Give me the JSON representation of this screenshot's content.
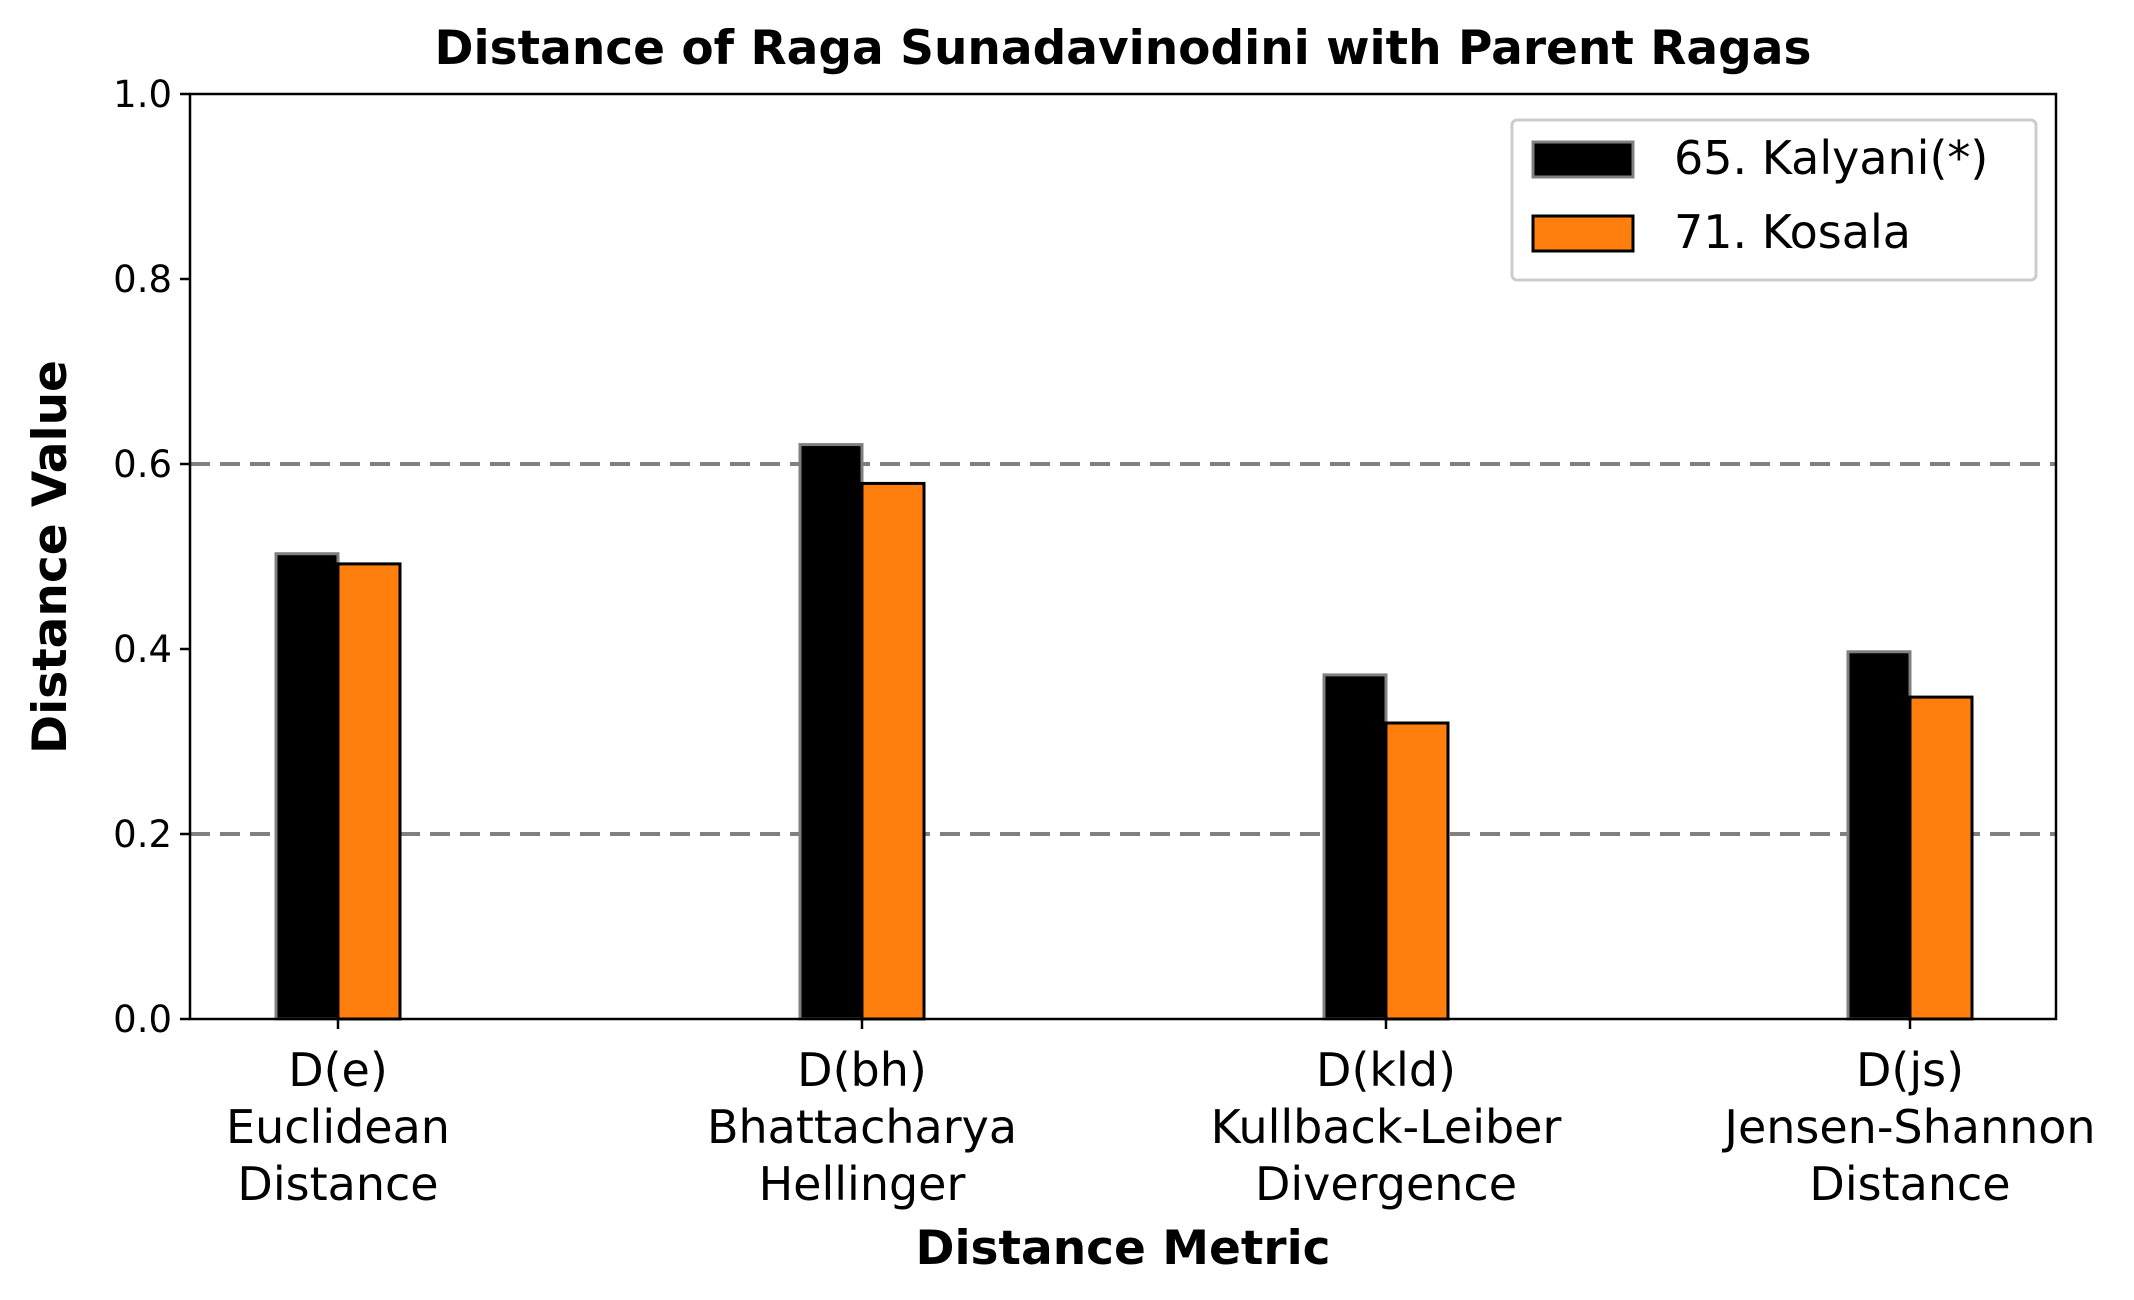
{
  "chart_data": {
    "type": "bar",
    "title": "Distance of Raga Sunadavinodini with Parent Ragas",
    "xlabel": "Distance Metric",
    "ylabel": "Distance Value",
    "ylim": [
      0,
      1.0
    ],
    "yticks": [
      "0.0",
      "0.2",
      "0.4",
      "0.6",
      "0.8",
      "1.0"
    ],
    "reference_lines": [
      0.2,
      0.6
    ],
    "legend_position": "top-right",
    "categories": [
      [
        "D(e)",
        "Euclidean",
        "Distance"
      ],
      [
        "D(bh)",
        "Bhattacharya",
        "Hellinger"
      ],
      [
        "D(kld)",
        "Kullback-Leiber",
        "Divergence"
      ],
      [
        "D(js)",
        "Jensen-Shannon",
        "Distance"
      ]
    ],
    "series": [
      {
        "name": "65. Kalyani(*)",
        "values": [
          0.503,
          0.621,
          0.372,
          0.397
        ],
        "color": "#000000",
        "edge": "#808080"
      },
      {
        "name": "71. Kosala",
        "values": [
          0.492,
          0.579,
          0.32,
          0.348
        ],
        "color": "#ff7f0e",
        "edge": "#000000"
      }
    ]
  }
}
